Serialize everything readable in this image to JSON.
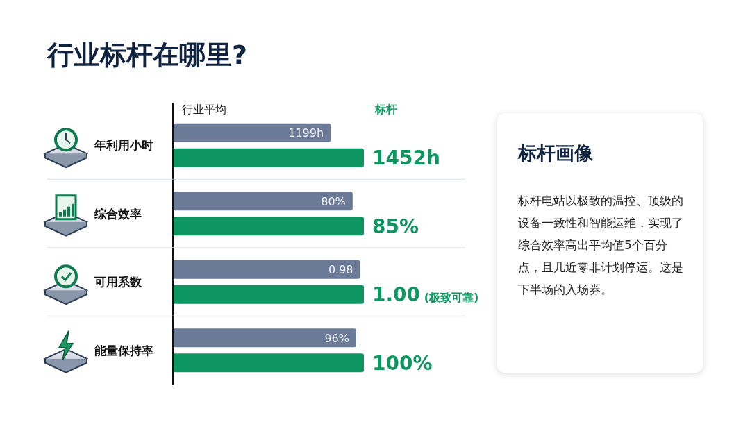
{
  "chart_data": [
    {
      "type": "bar",
      "title": "行业标杆在哪里?",
      "orientation": "horizontal",
      "legend": "top",
      "categories": [
        "年利用小时"
      ],
      "series": [
        {
          "name": "行业平均",
          "color": "#6b7a96",
          "values": [
            1199
          ],
          "value_labels": [
            "1199h"
          ]
        },
        {
          "name": "标杆",
          "color": "#0e9660",
          "values": [
            1452
          ],
          "value_labels": [
            "1452h"
          ]
        }
      ]
    },
    {
      "type": "bar",
      "orientation": "horizontal",
      "categories": [
        "综合效率"
      ],
      "series": [
        {
          "color": "#6b7a96",
          "values": [
            80
          ],
          "value_labels": [
            "80%"
          ]
        },
        {
          "color": "#0e9660",
          "values": [
            85
          ],
          "value_labels": [
            "85%"
          ]
        }
      ]
    },
    {
      "type": "bar",
      "orientation": "horizontal",
      "categories": [
        "可用系数"
      ],
      "series": [
        {
          "color": "#6b7a96",
          "values": [
            0.98
          ],
          "value_labels": [
            "0.98"
          ]
        },
        {
          "color": "#0e9660",
          "values": [
            1.0
          ],
          "value_labels": [
            "1.00 (极致可靠)"
          ]
        }
      ]
    },
    {
      "type": "bar",
      "orientation": "horizontal",
      "categories": [
        "能量保持率"
      ],
      "series": [
        {
          "color": "#6b7a96",
          "values": [
            96
          ],
          "value_labels": [
            "96%"
          ]
        },
        {
          "color": "#0e9660",
          "values": [
            100
          ],
          "value_labels": [
            "100%"
          ]
        }
      ]
    },
    {
      "type": "other",
      "title": "标杆画像",
      "annotations": [
        "标杆电站以极致的温控、顶级的设备一致性和智能运维，实现了综合效率高出平均值5个百分点，且几近零非计划停运。这是下半场的入场券。"
      ]
    }
  ]
}
